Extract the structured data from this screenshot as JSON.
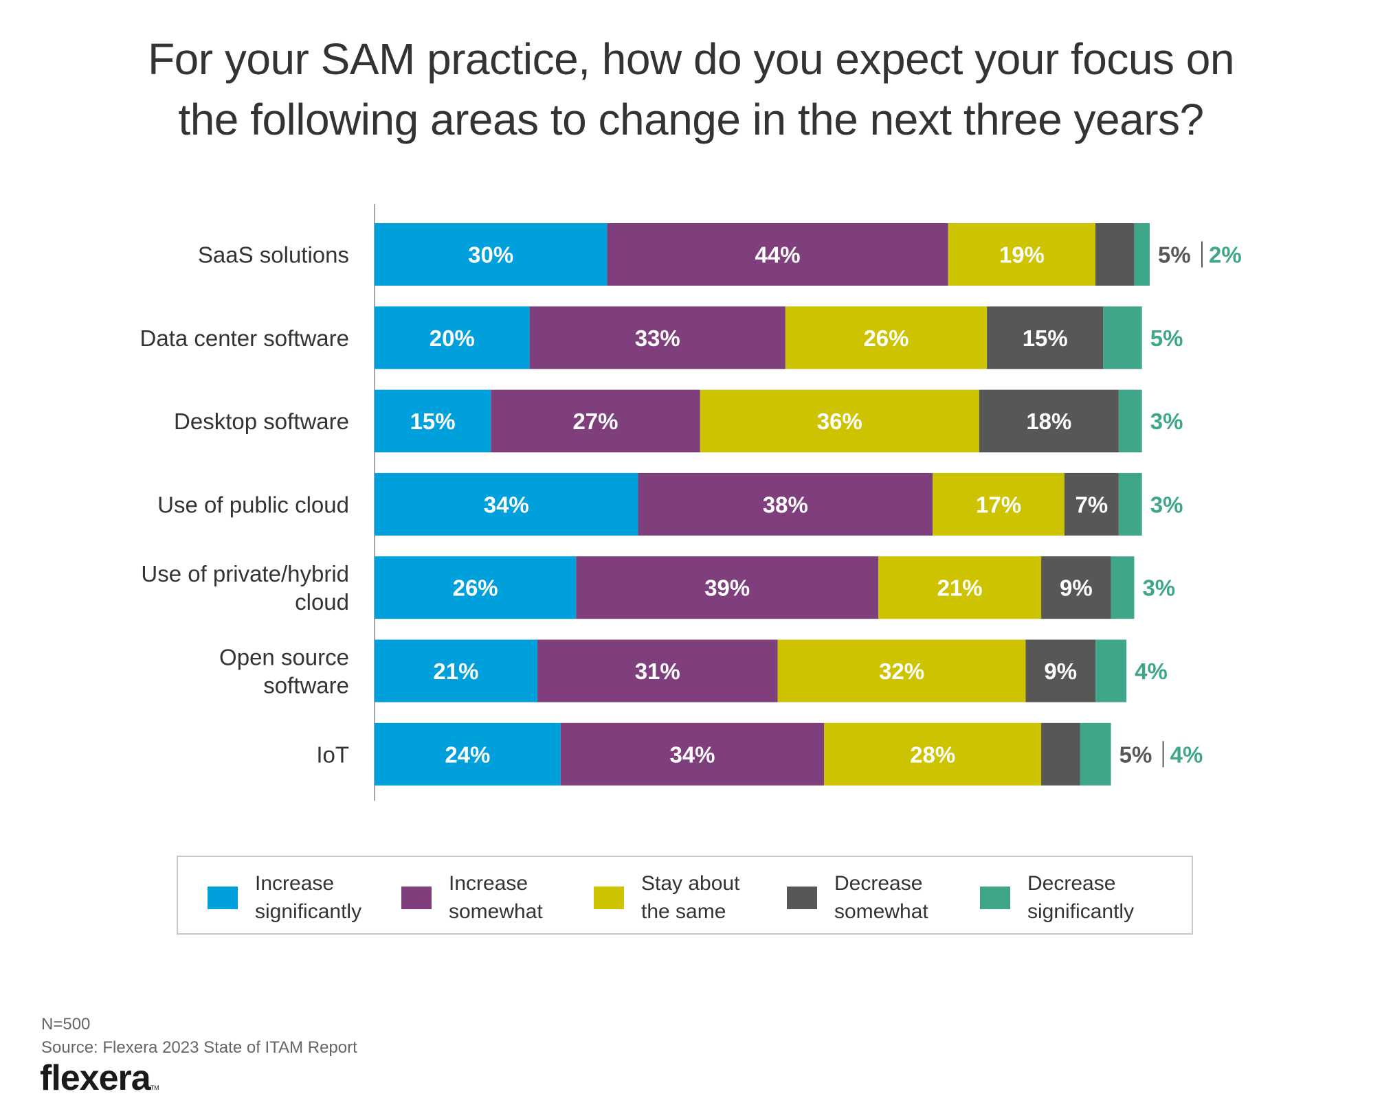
{
  "title": {
    "line1": "For your SAM practice, how do you expect your focus on",
    "line2": "the following areas to change in the next three years?"
  },
  "chart_data": {
    "type": "bar",
    "orientation": "horizontal",
    "stacked": true,
    "title": "For your SAM practice, how do you expect your focus on the following areas to change in the next three years?",
    "xlabel": "",
    "ylabel": "",
    "unit": "%",
    "grid": false,
    "legend_position": "bottom",
    "categories": [
      [
        "SaaS solutions"
      ],
      [
        "Data center software"
      ],
      [
        "Desktop software"
      ],
      [
        "Use of public cloud"
      ],
      [
        "Use of private/hybrid",
        "cloud"
      ],
      [
        "Open source",
        "software"
      ],
      [
        "IoT"
      ]
    ],
    "series": [
      {
        "name": "Increase significantly",
        "color": "#00a0dd",
        "values": [
          30,
          20,
          15,
          34,
          26,
          21,
          24
        ]
      },
      {
        "name": "Increase somewhat",
        "color": "#7f3f7d",
        "values": [
          44,
          33,
          27,
          38,
          39,
          31,
          34
        ]
      },
      {
        "name": "Stay about the same",
        "color": "#cdc300",
        "values": [
          19,
          26,
          36,
          17,
          21,
          32,
          28
        ]
      },
      {
        "name": "Decrease somewhat",
        "color": "#575757",
        "values": [
          5,
          15,
          18,
          7,
          9,
          9,
          5
        ]
      },
      {
        "name": "Decrease significantly",
        "color": "#3fa68a",
        "values": [
          2,
          5,
          3,
          3,
          3,
          4,
          4
        ]
      }
    ],
    "label_placement": {
      "inside_series": [
        0,
        1,
        2
      ],
      "note": "Decrease somewhat shown inside bar when large enough; otherwise paired outside with Decrease significantly"
    },
    "outside_labels": [
      {
        "parts": [
          {
            "text": "5%",
            "series": 3
          },
          {
            "text": "2%",
            "series": 4
          }
        ]
      },
      {
        "parts": [
          {
            "text": "5%",
            "series": 4
          }
        ]
      },
      {
        "parts": [
          {
            "text": "3%",
            "series": 4
          }
        ]
      },
      {
        "parts": [
          {
            "text": "3%",
            "series": 4
          }
        ]
      },
      {
        "parts": [
          {
            "text": "3%",
            "series": 4
          }
        ]
      },
      {
        "parts": [
          {
            "text": "4%",
            "series": 4
          }
        ]
      },
      {
        "parts": [
          {
            "text": "5%",
            "series": 3
          },
          {
            "text": "4%",
            "series": 4
          }
        ]
      }
    ],
    "inside_decrease_somewhat": [
      false,
      true,
      true,
      true,
      true,
      true,
      false
    ]
  },
  "legend": [
    {
      "line1": "Increase",
      "line2": "significantly",
      "color": "#00a0dd"
    },
    {
      "line1": "Increase",
      "line2": "somewhat",
      "color": "#7f3f7d"
    },
    {
      "line1": "Stay about",
      "line2": "the same",
      "color": "#cdc300"
    },
    {
      "line1": "Decrease",
      "line2": "somewhat",
      "color": "#575757"
    },
    {
      "line1": "Decrease",
      "line2": "significantly",
      "color": "#3fa68a"
    }
  ],
  "footer": {
    "sample": "N=500",
    "source": "Source: Flexera 2023 State of ITAM Report",
    "logo": "flexera",
    "logo_tm": "TM"
  },
  "colors": {
    "text": "#333333",
    "outside_dark": "#575757",
    "outside_teal": "#3fa68a",
    "axis": "#888888",
    "legend_border": "#c8c8c8"
  }
}
